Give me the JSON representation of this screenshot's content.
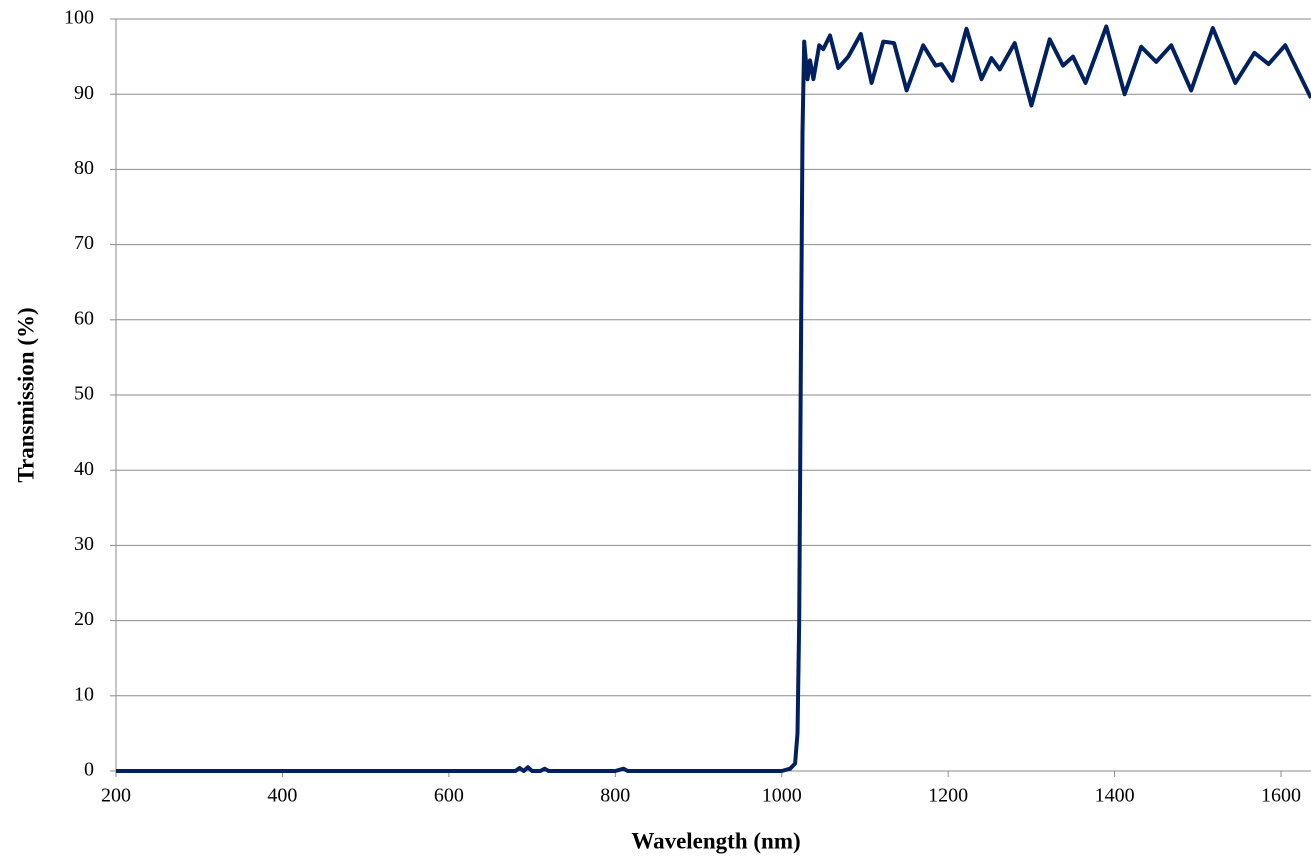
{
  "chart_data": {
    "type": "line",
    "x_label": "Wavelength (nm)",
    "y_label": "Transmission (%)",
    "x": [
      200,
      300,
      400,
      500,
      600,
      650,
      680,
      685,
      690,
      695,
      700,
      710,
      715,
      720,
      800,
      810,
      815,
      900,
      1000,
      1010,
      1016,
      1019,
      1021,
      1023,
      1025,
      1027,
      1031,
      1034,
      1038,
      1045,
      1050,
      1058,
      1068,
      1080,
      1095,
      1108,
      1122,
      1135,
      1150,
      1170,
      1185,
      1192,
      1205,
      1222,
      1240,
      1252,
      1262,
      1280,
      1300,
      1322,
      1338,
      1350,
      1365,
      1390,
      1412,
      1432,
      1450,
      1468,
      1492,
      1518,
      1545,
      1568,
      1585,
      1605,
      1636
    ],
    "values": [
      0,
      0,
      0,
      0,
      0,
      0,
      0,
      0.4,
      0,
      0.5,
      0,
      0,
      0.3,
      0,
      0,
      0.3,
      0,
      0,
      0,
      0.3,
      1,
      5,
      20,
      55,
      85,
      97,
      92,
      94.5,
      92,
      96.5,
      96,
      97.8,
      93.5,
      95,
      98,
      91.5,
      97,
      96.8,
      90.5,
      96.5,
      93.8,
      94,
      91.8,
      98.7,
      92,
      94.8,
      93.3,
      96.8,
      88.5,
      97.3,
      93.8,
      95,
      91.5,
      99,
      90,
      96.3,
      94.3,
      96.5,
      90.5,
      98.8,
      91.5,
      95.5,
      94,
      96.5,
      89.5
    ],
    "color": "#002060",
    "xlim": [
      200,
      1636
    ],
    "ylim": [
      0,
      100
    ],
    "xticks": [
      200,
      400,
      600,
      800,
      1000,
      1200,
      1400,
      1600
    ],
    "yticks": [
      0,
      10,
      20,
      30,
      40,
      50,
      60,
      70,
      80,
      90,
      100
    ],
    "grid": true
  }
}
